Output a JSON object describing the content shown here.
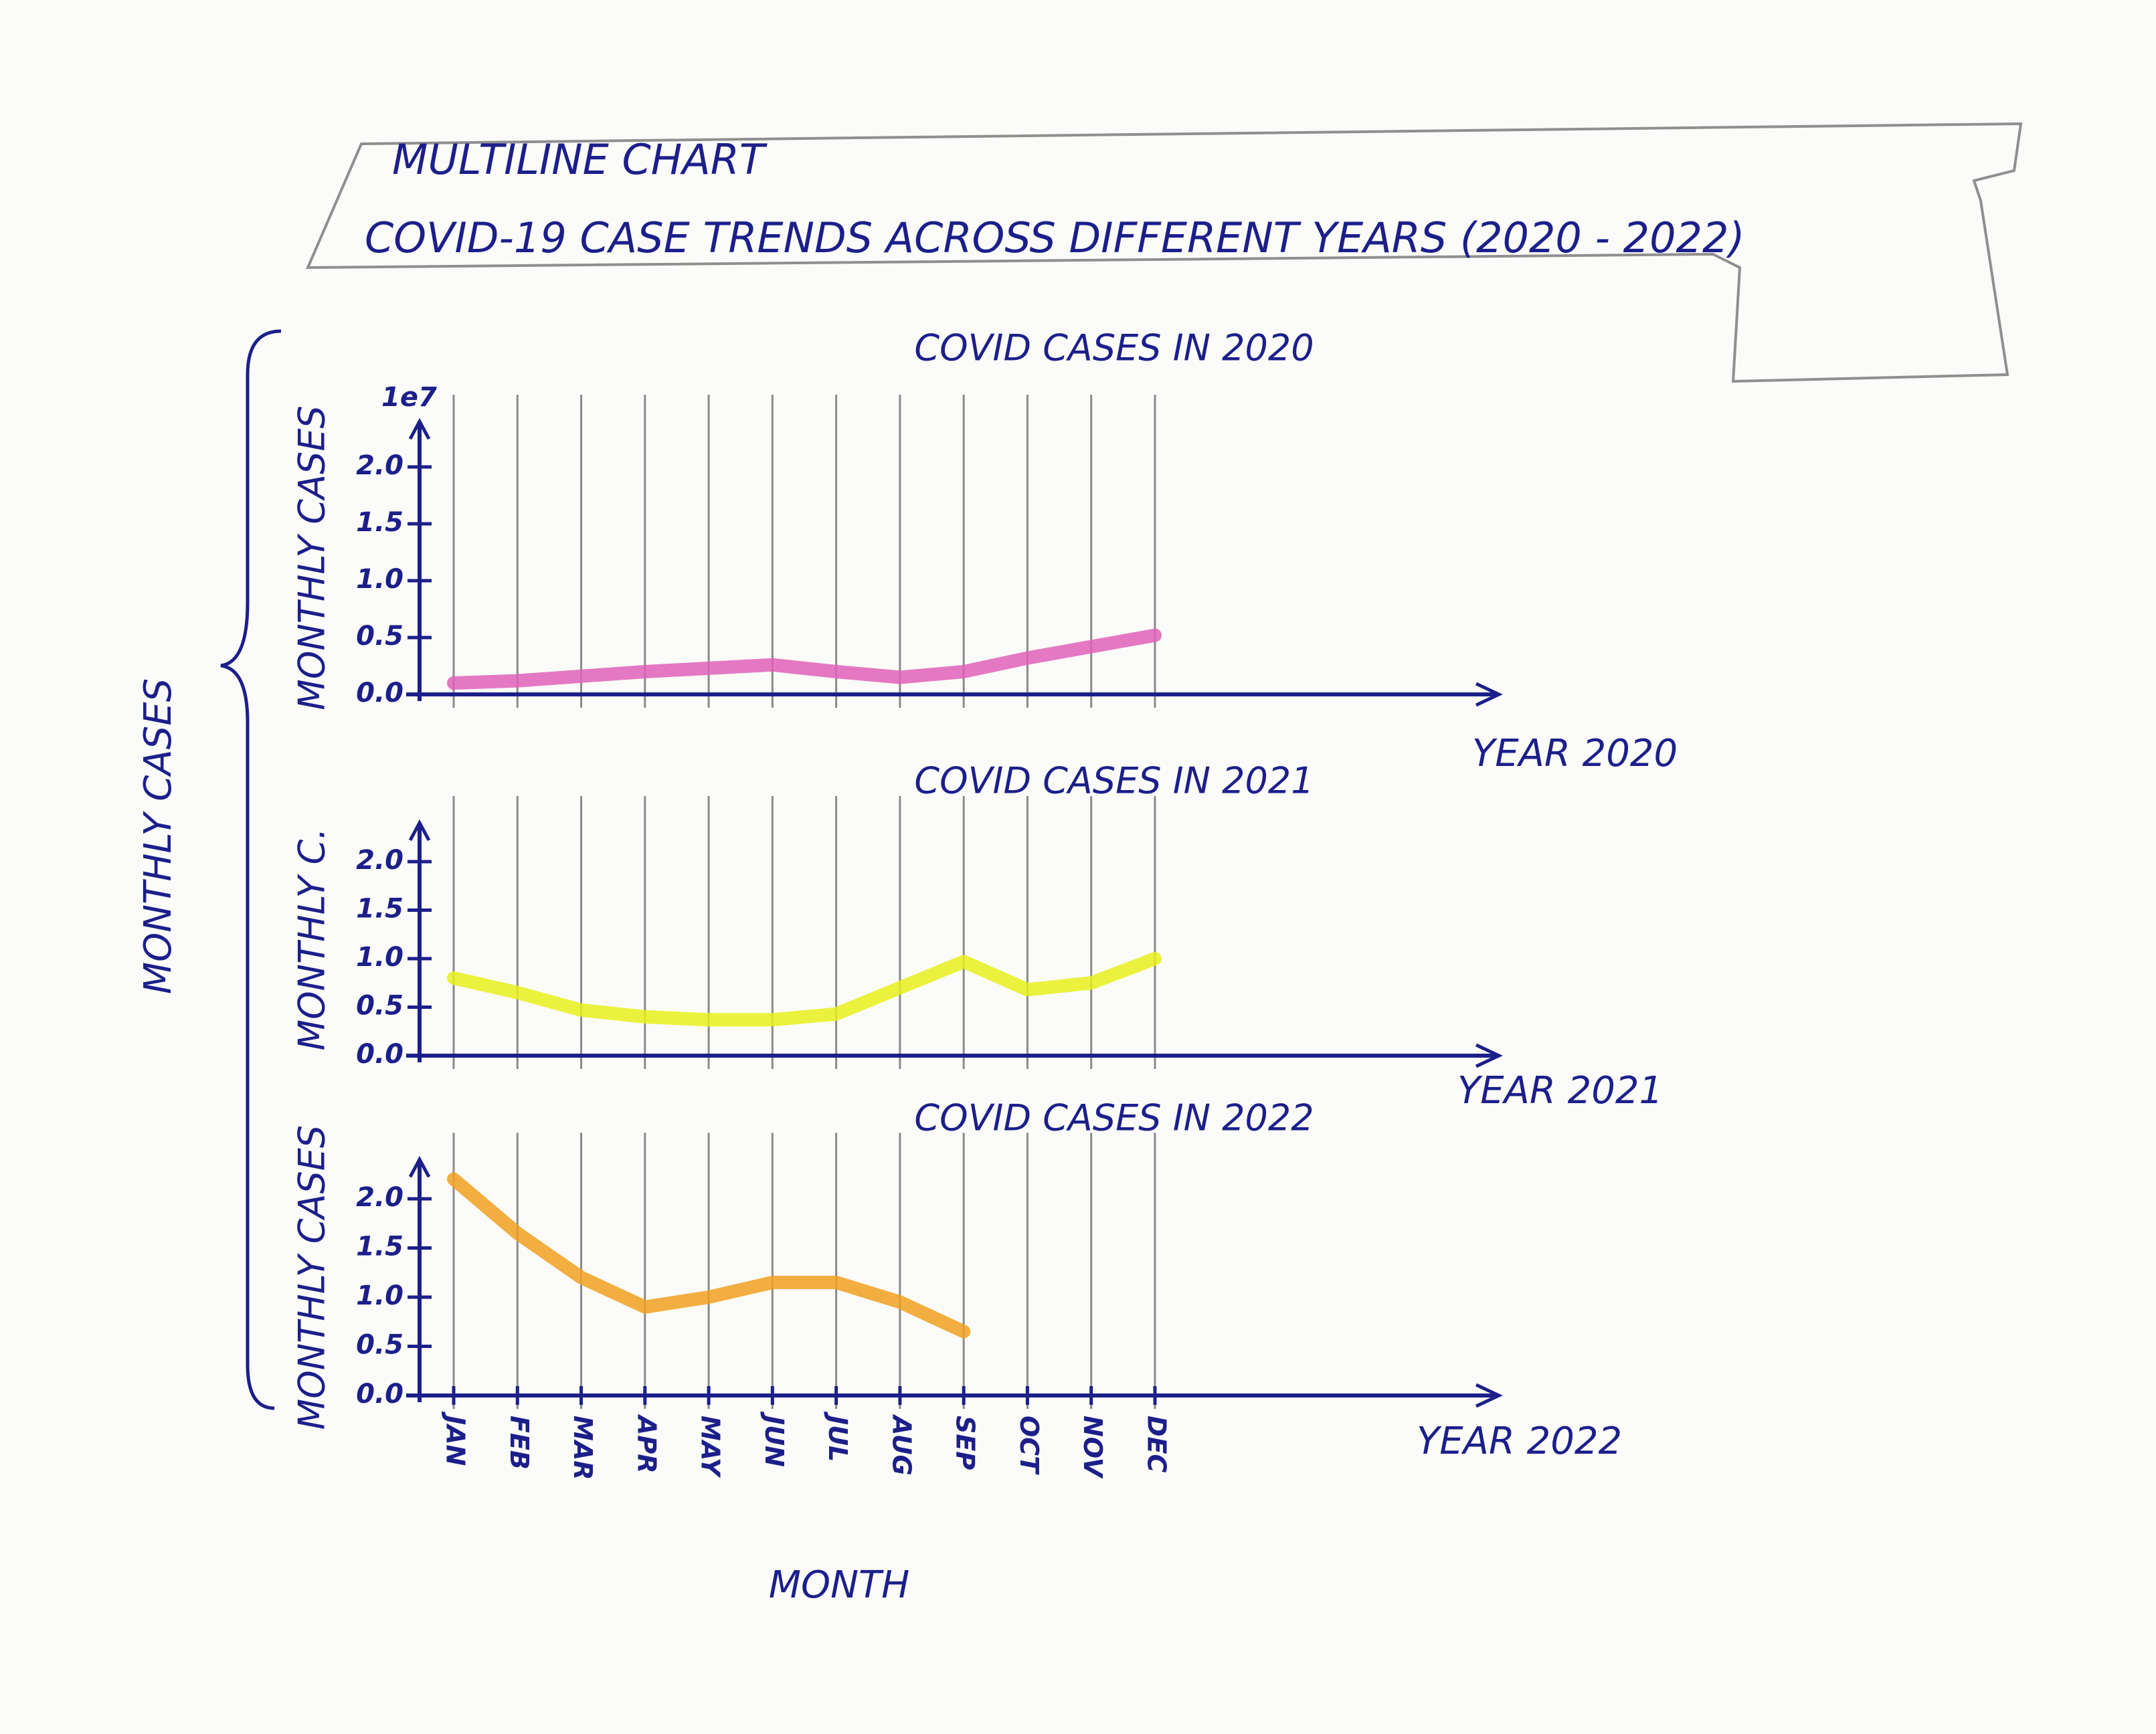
{
  "header": {
    "title": "MULTILINE CHART",
    "subtitle": "COVID-19 CASE TRENDS ACROSS DIFFERENT YEARS (2020 - 2022)"
  },
  "ylabel": "MONTHLY CASES",
  "xlabel": "MONTH",
  "chart_data": [
    {
      "type": "line",
      "title": "COVID CASES IN 2020",
      "ylabel": "MONTHLY CASES",
      "xlabel": "YEAR 2020",
      "offset": "1e7",
      "series": [
        {
          "name": "2020",
          "color": "#e060b8",
          "values": [
            0.1,
            0.12,
            0.16,
            0.2,
            0.23,
            0.26,
            0.2,
            0.15,
            0.2,
            0.32,
            0.42,
            0.52
          ]
        }
      ],
      "ylim": [
        0,
        2.4
      ],
      "yticks": [
        {
          "value": 0,
          "label": "0.0"
        },
        {
          "value": 0.5,
          "label": "0.5"
        },
        {
          "value": 1.0,
          "label": "1.0"
        },
        {
          "value": 1.5,
          "label": "1.5"
        },
        {
          "value": 2.0,
          "label": "2.0"
        }
      ],
      "grid": true
    },
    {
      "type": "line",
      "title": "COVID CASES IN 2021",
      "ylabel": "MONTHLY C.",
      "xlabel": "YEAR 2021",
      "series": [
        {
          "name": "2021",
          "color": "#e8f01c",
          "values": [
            0.8,
            0.65,
            0.47,
            0.4,
            0.37,
            0.37,
            0.43,
            0.7,
            0.97,
            0.68,
            0.75,
            1.0
          ]
        }
      ],
      "ylim": [
        0,
        2.4
      ],
      "yticks": [
        {
          "value": 0,
          "label": "0.0"
        },
        {
          "value": 0.5,
          "label": "0.5"
        },
        {
          "value": 1.0,
          "label": "1.0"
        },
        {
          "value": 1.5,
          "label": "1.5"
        },
        {
          "value": 2.0,
          "label": "2.0"
        }
      ],
      "grid": true
    },
    {
      "type": "line",
      "title": "COVID CASES IN 2022",
      "ylabel": "MONTHLY CASES",
      "xlabel": "YEAR 2022",
      "categories": [
        "JAN",
        "FEB",
        "MAR",
        "APR",
        "MAY",
        "JUN",
        "JUL",
        "AUG",
        "SEP",
        "OCT",
        "NOV",
        "DEC"
      ],
      "series": [
        {
          "name": "2022",
          "color": "#f0a020",
          "values": [
            2.2,
            1.65,
            1.2,
            0.9,
            1.0,
            1.15,
            1.15,
            0.95,
            0.65,
            null,
            null,
            null
          ]
        }
      ],
      "ylim": [
        0,
        2.4
      ],
      "yticks": [
        {
          "value": 0,
          "label": "0.0"
        },
        {
          "value": 0.5,
          "label": "0.5"
        },
        {
          "value": 1.0,
          "label": "1.0"
        },
        {
          "value": 1.5,
          "label": "1.5"
        },
        {
          "value": 2.0,
          "label": "2.0"
        }
      ],
      "grid": true
    }
  ]
}
